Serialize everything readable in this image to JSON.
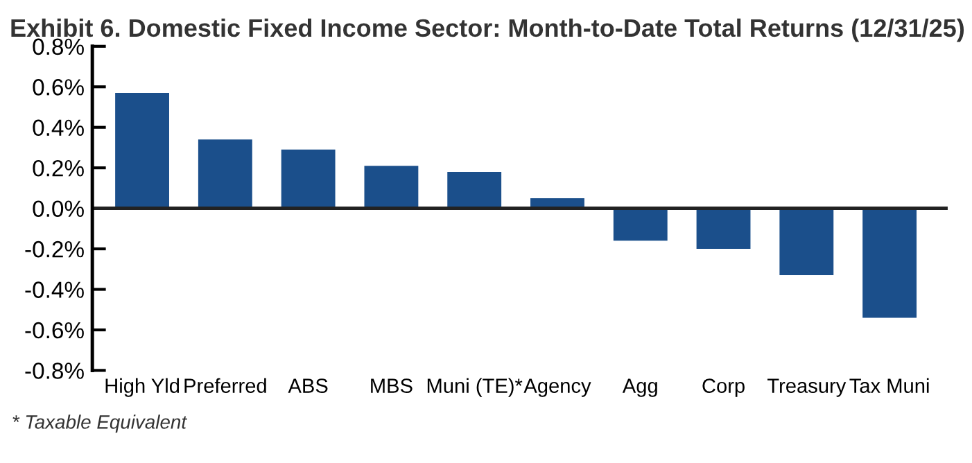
{
  "chart_data": {
    "type": "bar",
    "title": "Exhibit 6. Domestic Fixed Income Sector: Month-to-Date Total Returns (12/31/25)",
    "categories": [
      "High Yld",
      "Preferred",
      "ABS",
      "MBS",
      "Muni (TE)*",
      "Agency",
      "Agg",
      "Corp",
      "Treasury",
      "Tax Muni"
    ],
    "values": [
      0.57,
      0.34,
      0.29,
      0.21,
      0.18,
      0.05,
      -0.16,
      -0.2,
      -0.33,
      -0.54
    ],
    "color": "#1b4f8b",
    "ylim": [
      -0.8,
      0.8
    ],
    "yticks": [
      {
        "value": 0.8,
        "label": "0.8%"
      },
      {
        "value": 0.6,
        "label": "0.6%"
      },
      {
        "value": 0.4,
        "label": "0.4%"
      },
      {
        "value": 0.2,
        "label": "0.2%"
      },
      {
        "value": 0.0,
        "label": "0.0%"
      },
      {
        "value": -0.2,
        "label": "-0.2%"
      },
      {
        "value": -0.4,
        "label": "-0.4%"
      },
      {
        "value": -0.6,
        "label": "-0.6%"
      },
      {
        "value": -0.8,
        "label": "-0.8%"
      }
    ],
    "ref_lines": [
      {
        "axis": "y",
        "value": 0,
        "color": "#222222"
      }
    ],
    "grid": false,
    "legend": false,
    "annotations": [
      "* Taxable Equivalent"
    ]
  }
}
